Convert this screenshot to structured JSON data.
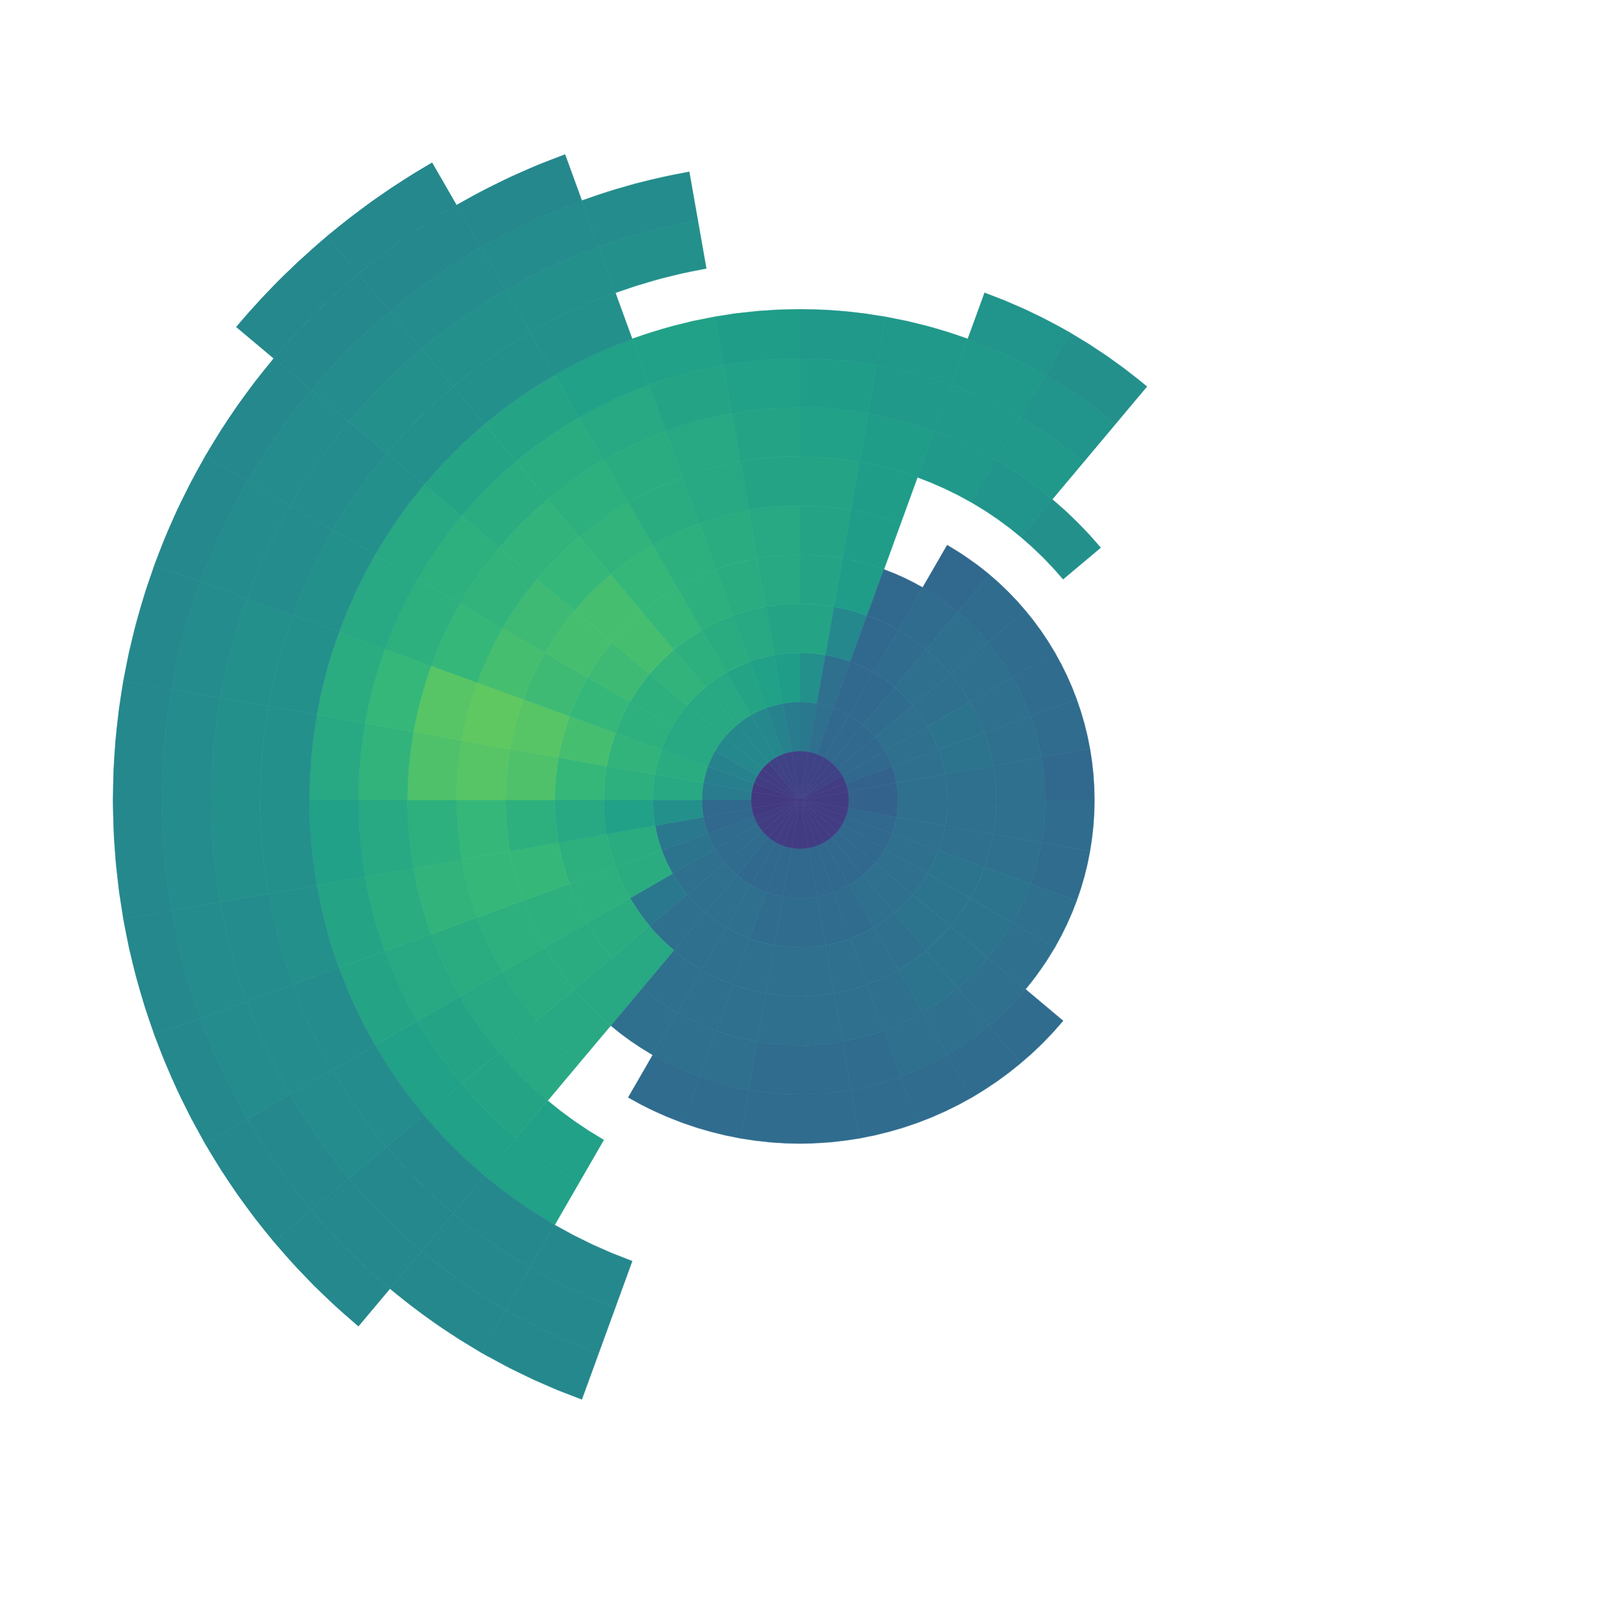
{
  "chart_data": {
    "type": "polar_heatmap",
    "azimuth_edges": [
      0,
      10,
      20,
      30,
      40,
      50,
      60,
      70,
      80,
      90,
      100,
      110,
      120,
      130,
      140,
      150,
      160,
      170,
      180,
      190,
      200,
      210,
      220,
      230,
      240,
      250,
      260,
      270,
      280,
      290,
      300,
      310,
      320,
      330,
      340,
      350,
      360
    ],
    "range_edges": [
      0,
      10,
      20,
      30,
      40,
      50,
      60,
      70,
      80,
      90,
      100,
      110,
      120,
      130,
      140,
      150
    ],
    "values": [
      [
        12,
        24,
        30,
        35,
        35,
        35,
        35,
        34,
        33,
        32,
        null,
        null,
        null,
        null,
        null
      ],
      [
        12,
        22,
        22,
        28,
        33,
        33,
        33,
        33,
        32,
        32,
        null,
        null,
        null,
        null,
        null
      ],
      [
        12,
        20,
        20,
        20,
        20,
        null,
        null,
        32,
        32,
        32,
        31,
        null,
        null,
        null,
        null
      ],
      [
        12,
        20,
        20,
        21,
        21,
        20,
        null,
        31,
        32,
        31,
        30,
        null,
        null,
        null,
        null
      ],
      [
        12,
        20,
        21,
        22,
        22,
        21,
        null,
        30,
        null,
        null,
        null,
        null,
        null,
        null,
        null
      ],
      [
        12,
        20,
        22,
        22,
        22,
        21,
        null,
        null,
        null,
        null,
        null,
        null,
        null,
        null,
        null
      ],
      [
        11,
        20,
        22,
        23,
        22,
        21,
        null,
        null,
        null,
        null,
        null,
        null,
        null,
        null,
        null
      ],
      [
        11,
        19,
        22,
        23,
        22,
        21,
        null,
        null,
        null,
        null,
        null,
        null,
        null,
        null,
        null
      ],
      [
        11,
        19,
        22,
        22,
        22,
        20,
        null,
        null,
        null,
        null,
        null,
        null,
        null,
        null,
        null
      ],
      [
        11,
        19,
        22,
        22,
        22,
        21,
        null,
        null,
        null,
        null,
        null,
        null,
        null,
        null,
        null
      ],
      [
        11,
        20,
        22,
        22,
        22,
        21,
        null,
        null,
        null,
        null,
        null,
        null,
        null,
        null,
        null
      ],
      [
        11,
        20,
        22,
        23,
        23,
        22,
        null,
        null,
        null,
        null,
        null,
        null,
        null,
        null,
        null
      ],
      [
        11,
        20,
        22,
        23,
        23,
        22,
        null,
        null,
        null,
        null,
        null,
        null,
        null,
        null,
        null
      ],
      [
        11,
        20,
        22,
        23,
        23,
        22,
        21,
        null,
        null,
        null,
        null,
        null,
        null,
        null,
        null
      ],
      [
        11,
        20,
        22,
        22,
        23,
        22,
        21,
        null,
        null,
        null,
        null,
        null,
        null,
        null,
        null
      ],
      [
        11,
        20,
        21,
        22,
        22,
        22,
        21,
        null,
        null,
        null,
        null,
        null,
        null,
        null,
        null
      ],
      [
        11,
        20,
        21,
        22,
        22,
        21,
        21,
        null,
        null,
        null,
        null,
        null,
        null,
        null,
        null
      ],
      [
        11,
        20,
        21,
        22,
        22,
        21,
        21,
        null,
        null,
        null,
        null,
        null,
        null,
        null,
        null
      ],
      [
        11,
        20,
        21,
        22,
        22,
        21,
        21,
        null,
        null,
        null,
        null,
        null,
        null,
        null,
        null
      ],
      [
        11,
        20,
        21,
        22,
        22,
        22,
        21,
        null,
        null,
        null,
        null,
        null,
        null,
        null,
        null
      ],
      [
        11,
        20,
        22,
        22,
        22,
        22,
        21,
        null,
        null,
        null,
        28,
        28,
        28,
        null,
        null
      ],
      [
        11,
        20,
        22,
        22,
        22,
        22,
        null,
        null,
        34,
        34,
        28,
        28,
        28,
        null,
        null
      ],
      [
        11,
        21,
        22,
        22,
        36,
        36,
        36,
        36,
        35,
        34,
        28,
        28,
        28,
        28,
        null
      ],
      [
        11,
        21,
        22,
        24,
        37,
        37,
        37,
        36,
        35,
        34,
        29,
        29,
        28,
        28,
        null
      ],
      [
        11,
        21,
        23,
        37,
        38,
        38,
        38,
        37,
        36,
        35,
        29,
        29,
        29,
        28,
        null
      ],
      [
        10,
        20,
        24,
        37,
        38,
        40,
        40,
        39,
        37,
        35,
        30,
        29,
        29,
        28,
        null
      ],
      [
        10,
        20,
        30,
        34,
        36,
        38,
        40,
        38,
        36,
        34,
        30,
        30,
        29,
        28,
        null
      ],
      [
        10,
        25,
        36,
        38,
        40,
        43,
        44,
        43,
        39,
        36,
        30,
        30,
        29,
        28,
        null
      ],
      [
        10,
        26,
        37,
        39,
        42,
        44,
        45,
        44,
        40,
        37,
        30,
        30,
        29,
        28,
        null
      ],
      [
        11,
        27,
        36,
        38,
        40,
        41,
        42,
        40,
        38,
        36,
        30,
        29,
        29,
        28,
        null
      ],
      [
        11,
        28,
        36,
        38,
        41,
        42,
        41,
        39,
        38,
        36,
        30,
        29,
        29,
        28,
        null
      ],
      [
        11,
        28,
        36,
        39,
        42,
        42,
        40,
        39,
        37,
        35,
        30,
        30,
        29,
        28,
        28
      ],
      [
        12,
        28,
        36,
        38,
        40,
        40,
        39,
        38,
        37,
        35,
        30,
        30,
        29,
        28,
        28
      ],
      [
        12,
        28,
        35,
        37,
        38,
        38,
        37,
        37,
        36,
        34,
        30,
        30,
        29,
        28,
        null
      ],
      [
        12,
        27,
        34,
        36,
        37,
        37,
        36,
        36,
        35,
        34,
        null,
        30,
        29,
        null,
        null
      ],
      [
        12,
        25,
        33,
        35,
        36,
        36,
        35,
        35,
        34,
        33,
        null,
        null,
        null,
        null,
        null
      ]
    ],
    "color_range": [
      0,
      60
    ],
    "tick_labels": false
  }
}
